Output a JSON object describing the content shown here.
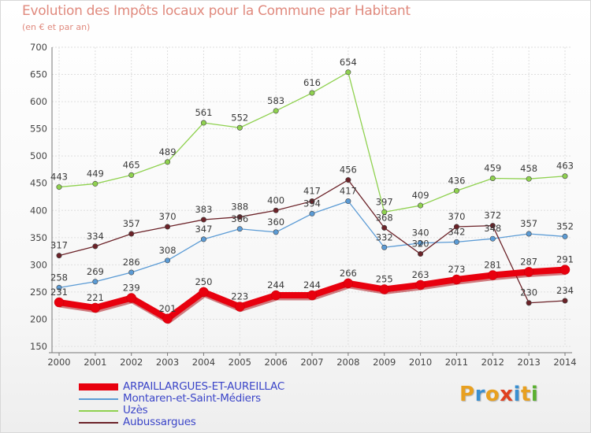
{
  "header": {
    "title": "Evolution des Impôts locaux pour la Commune par Habitant",
    "subtitle": "(en € et par an)"
  },
  "logo": {
    "text": "Proxiti",
    "colors": [
      "#e8a020",
      "#3a8fd0",
      "#e8a020",
      "#e04020",
      "#3a8fd0",
      "#e8a020",
      "#5ab030"
    ]
  },
  "chart_data": {
    "type": "line",
    "x": [
      2000,
      2001,
      2002,
      2003,
      2004,
      2005,
      2006,
      2007,
      2008,
      2009,
      2010,
      2011,
      2012,
      2013,
      2014
    ],
    "ylim": [
      150,
      700
    ],
    "yticks": [
      150,
      200,
      250,
      300,
      350,
      400,
      450,
      500,
      550,
      600,
      650,
      700
    ],
    "grid": true,
    "legend_position": "bottom-left",
    "series": [
      {
        "name": "ARPAILLARGUES-ET-AUREILLAC",
        "color": "#e8000e",
        "values": [
          231,
          221,
          239,
          201,
          250,
          223,
          244,
          244,
          266,
          255,
          263,
          273,
          281,
          287,
          291
        ]
      },
      {
        "name": "Montaren-et-Saint-Médiers",
        "color": "#5b9bd5",
        "values": [
          258,
          269,
          286,
          308,
          347,
          366,
          360,
          394,
          417,
          332,
          340,
          342,
          348,
          357,
          352
        ]
      },
      {
        "name": "Uzès",
        "color": "#8fd14f",
        "values": [
          443,
          449,
          465,
          489,
          561,
          552,
          583,
          616,
          654,
          397,
          409,
          436,
          459,
          458,
          463
        ]
      },
      {
        "name": "Aubussargues",
        "color": "#6b2228",
        "values": [
          317,
          334,
          357,
          370,
          383,
          388,
          400,
          417,
          456,
          368,
          320,
          370,
          372,
          230,
          234
        ]
      }
    ]
  }
}
